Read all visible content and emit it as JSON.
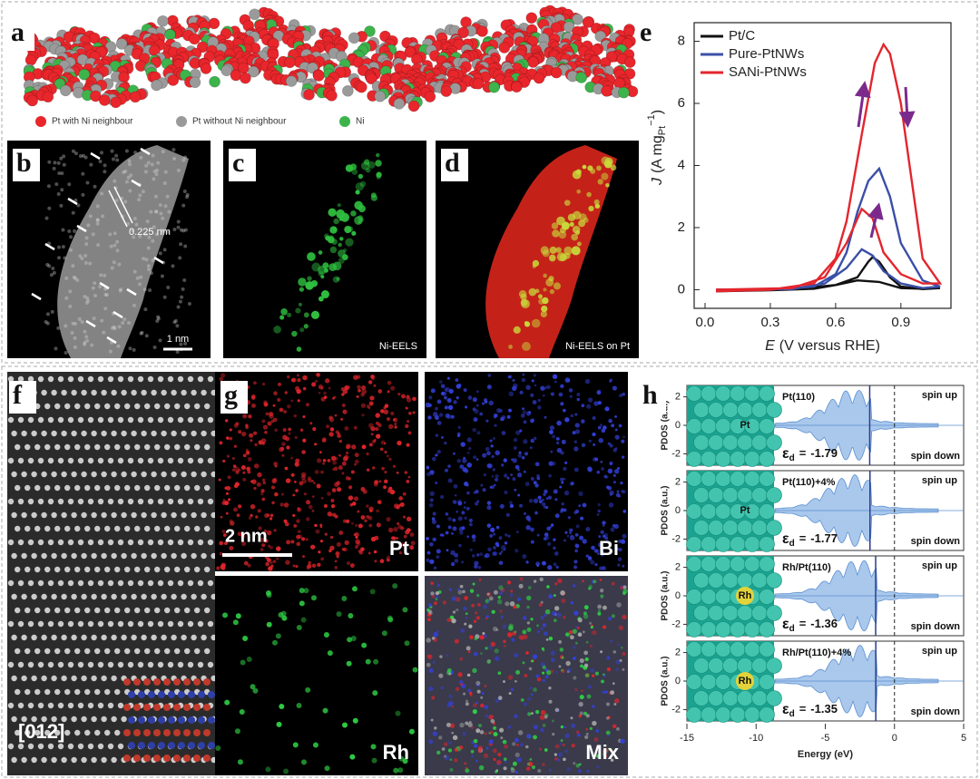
{
  "panels": {
    "a": {
      "label": "a",
      "legend": [
        {
          "name": "Pt with Ni neighbour",
          "color": "#e8262b"
        },
        {
          "name": "Pt without Ni neighbour",
          "color": "#9a9a9a"
        },
        {
          "name": "Ni",
          "color": "#3cb44b"
        }
      ]
    },
    "b": {
      "label": "b",
      "annotation": "0.225 nm",
      "scale": "1 nm"
    },
    "c": {
      "label": "c",
      "caption": "Ni-EELS"
    },
    "d": {
      "label": "d",
      "caption": "Ni-EELS on Pt"
    },
    "f": {
      "label": "f",
      "caption": "[012]"
    },
    "g": {
      "label": "g",
      "scale": "2 nm",
      "maps": [
        "Pt",
        "Bi",
        "Rh",
        "Mix"
      ]
    }
  },
  "chart_data": [
    {
      "type": "line",
      "label": "e",
      "xlabel": {
        "symbol": "E",
        "text": "(V versus RHE)"
      },
      "ylabel": {
        "symbol": "J",
        "unit": "(A mg",
        "subscript": "Pt",
        "superscript": "−1",
        "close": ")"
      },
      "xlim": [
        -0.05,
        1.13
      ],
      "ylim": [
        -0.6,
        8.6
      ],
      "xticks": [
        {
          "value": 0,
          "label": "0.0"
        },
        0.3,
        0.6,
        0.9
      ],
      "yticks": [
        0,
        2,
        4,
        6,
        8
      ],
      "series": [
        {
          "name": "Pt/C",
          "color": "#111111",
          "x": [
            0.05,
            0.4,
            0.6,
            0.7,
            0.75,
            0.77,
            0.8,
            0.85,
            0.9,
            1.0,
            1.08,
            1.0,
            0.9,
            0.8,
            0.7,
            0.6,
            0.5,
            0.3,
            0.05
          ],
          "values": [
            0,
            0.02,
            0.15,
            0.4,
            0.9,
            1.05,
            0.9,
            0.4,
            0.1,
            0.02,
            0.05,
            0.03,
            0.05,
            0.25,
            0.3,
            0.15,
            0.03,
            -0.02,
            -0.05
          ]
        },
        {
          "name": "Pure-PtNWs",
          "color": "#3b4fa8",
          "x": [
            0.05,
            0.4,
            0.55,
            0.65,
            0.72,
            0.77,
            0.82,
            0.9,
            1.0,
            1.08,
            1.0,
            0.9,
            0.85,
            0.8,
            0.75,
            0.7,
            0.65,
            0.6,
            0.5,
            0.3,
            0.05
          ],
          "values": [
            0,
            0.02,
            0.2,
            0.7,
            1.3,
            1.1,
            0.6,
            0.2,
            0.05,
            0.1,
            0.3,
            1.5,
            3.0,
            3.9,
            3.5,
            2.5,
            1.2,
            0.5,
            0.1,
            0,
            -0.02
          ]
        },
        {
          "name": "SANi-PtNWs",
          "color": "#e3262d",
          "x": [
            0.05,
            0.4,
            0.55,
            0.65,
            0.72,
            0.77,
            0.82,
            0.9,
            1.0,
            1.08,
            1.0,
            0.95,
            0.9,
            0.85,
            0.82,
            0.78,
            0.72,
            0.65,
            0.6,
            0.5,
            0.3,
            0.05
          ],
          "values": [
            0,
            0.05,
            0.4,
            1.5,
            2.6,
            2.3,
            1.2,
            0.5,
            0.2,
            0.2,
            1.0,
            3.5,
            6.0,
            7.6,
            7.9,
            7.3,
            5.0,
            2.2,
            1.0,
            0.2,
            0,
            -0.05
          ]
        }
      ]
    },
    {
      "type": "pdos",
      "label": "h",
      "xlabel": "Energy (eV)",
      "ylabel": "PDOS (a.u.)",
      "xlim": [
        -15,
        5
      ],
      "xticks": [
        -15,
        -10,
        -5,
        0,
        5
      ],
      "ylim": [
        -2.8,
        2.8
      ],
      "yticks": [
        2,
        0,
        -2
      ],
      "spin_up": "spin up",
      "spin_down": "spin down",
      "ed_symbol": "ε",
      "ed_subscript": "d",
      "ed_sign": "=",
      "panels": [
        {
          "title": "Pt(110)",
          "atom": "Pt",
          "ed": -1.79
        },
        {
          "title": "Pt(110)+4%",
          "atom": "Pt",
          "ed": -1.77
        },
        {
          "title": "Rh/Pt(110)",
          "atom": "Rh",
          "ed": -1.36
        },
        {
          "title": "Rh/Pt(110)+4%",
          "atom": "Rh",
          "ed": -1.35
        }
      ]
    }
  ]
}
